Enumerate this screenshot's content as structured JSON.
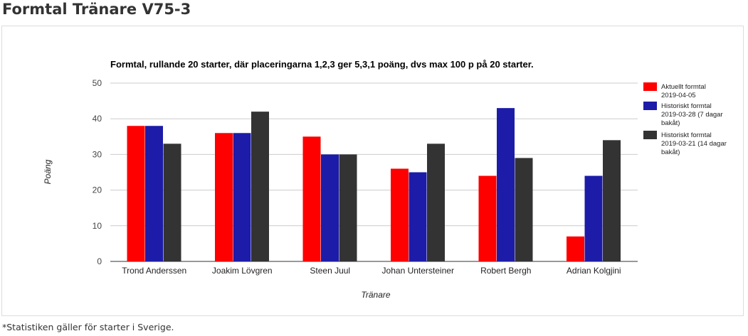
{
  "page": {
    "heading": "Formtal Tränare V75-3",
    "footnote": "*Statistiken gäller för starter i Sverige."
  },
  "chart_data": {
    "type": "bar",
    "title": "Formtal, rullande 20 starter, där placeringarna 1,2,3 ger 5,3,1 poäng, dvs max 100 p på 20 starter.",
    "xlabel": "Tränare",
    "ylabel": "Poäng",
    "ylim": [
      0,
      50
    ],
    "yticks": [
      0,
      10,
      20,
      30,
      40,
      50
    ],
    "grid": true,
    "legend_position": "right",
    "categories": [
      "Trond Anderssen",
      "Joakim Lövgren",
      "Steen Juul",
      "Johan Untersteiner",
      "Robert Bergh",
      "Adrian Kolgjini"
    ],
    "series": [
      {
        "name": "Aktuellt formtal 2019-04-05",
        "legend_lines": [
          "Aktuellt formtal",
          "2019-04-05"
        ],
        "color": "#ff0000",
        "values": [
          38,
          36,
          35,
          26,
          24,
          7
        ]
      },
      {
        "name": "Historiskt formtal 2019-03-28 (7 dagar bakåt)",
        "legend_lines": [
          "Historiskt formtal",
          "2019-03-28 (7 dagar",
          "bakåt)"
        ],
        "color": "#1c1ca8",
        "values": [
          38,
          36,
          30,
          25,
          43,
          24
        ]
      },
      {
        "name": "Historiskt formtal 2019-03-21 (14 dagar bakåt)",
        "legend_lines": [
          "Historiskt formtal",
          "2019-03-21 (14 dagar",
          "bakåt)"
        ],
        "color": "#333333",
        "values": [
          33,
          42,
          30,
          33,
          29,
          34
        ]
      }
    ]
  }
}
